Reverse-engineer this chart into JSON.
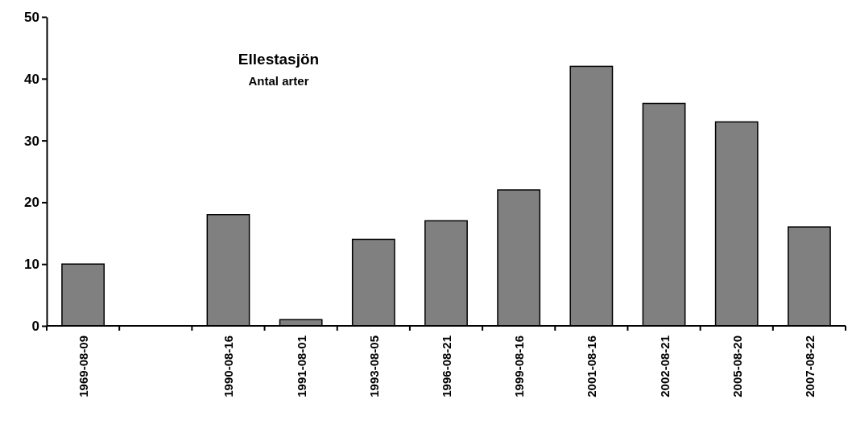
{
  "chart_data": {
    "type": "bar",
    "title": "Ellestasjön",
    "subtitle": "Antal arter",
    "categories": [
      "1969-08-09",
      null,
      "1990-08-16",
      "1991-08-01",
      "1993-08-05",
      "1996-08-21",
      "1999-08-16",
      "2001-08-16",
      "2002-08-21",
      "2005-08-20",
      "2007-08-22"
    ],
    "values": [
      10,
      null,
      18,
      1,
      14,
      17,
      22,
      42,
      36,
      33,
      16
    ],
    "color": "#808080",
    "ylim": [
      0,
      50
    ],
    "yticks": [
      0,
      10,
      20,
      30,
      40,
      50
    ],
    "grid": false,
    "legend": false
  }
}
